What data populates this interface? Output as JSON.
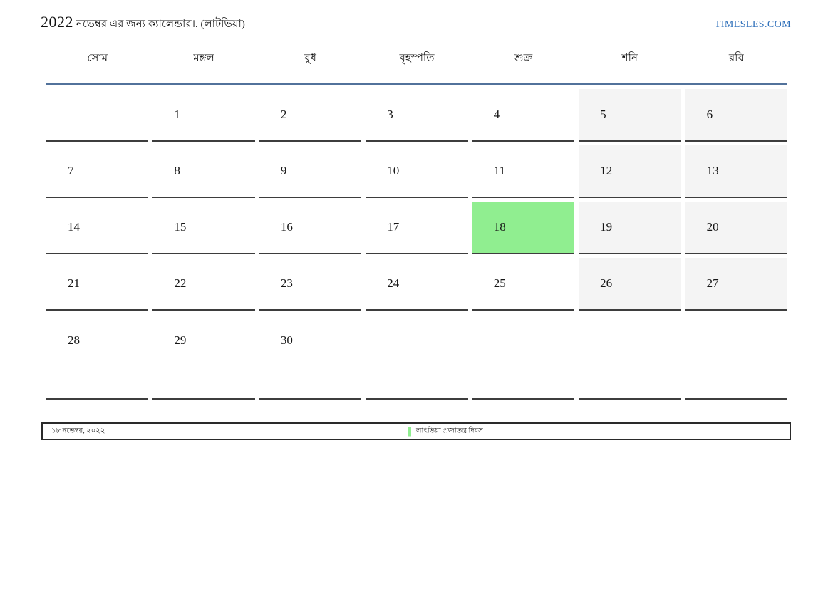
{
  "header": {
    "title_year": "2022",
    "title_text": "নভেম্বর এর জন্য ক্যালেন্ডার।. (লাটভিয়া)",
    "site_link": "TIMESLES.COM"
  },
  "calendar": {
    "weekdays": [
      "সোম",
      "মঙ্গল",
      "বুধ",
      "বৃহস্পতি",
      "শুক্র",
      "শনি",
      "রবি"
    ],
    "weeks": [
      [
        "",
        "1",
        "2",
        "3",
        "4",
        "5",
        "6"
      ],
      [
        "7",
        "8",
        "9",
        "10",
        "11",
        "12",
        "13"
      ],
      [
        "14",
        "15",
        "16",
        "17",
        "18",
        "19",
        "20"
      ],
      [
        "21",
        "22",
        "23",
        "24",
        "25",
        "26",
        "27"
      ],
      [
        "28",
        "29",
        "30",
        "",
        "",
        "",
        ""
      ]
    ],
    "weekend_columns": [
      5,
      6
    ],
    "highlighted_day": "18"
  },
  "legend": {
    "date": "১৮ নভেম্বর, ২০২২",
    "holiday_label": "লাৎভিয়া প্রজাতন্ত্র দিবস"
  },
  "colors": {
    "holiday_green": "#90ee90",
    "weekend_gray": "#f4f4f4",
    "header_line": "#52729b",
    "link_blue": "#2e6fba"
  }
}
